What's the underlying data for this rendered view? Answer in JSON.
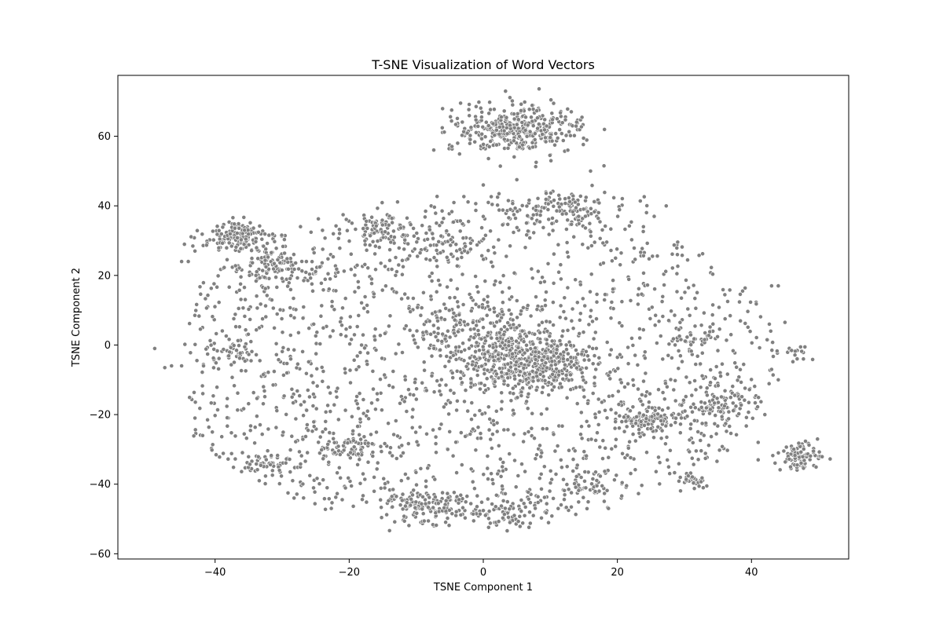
{
  "chart_data": {
    "type": "scatter",
    "title": "T-SNE Visualization of Word Vectors",
    "xlabel": "TSNE Component 1",
    "ylabel": "TSNE Component 2",
    "xlim": [
      -54.5,
      54.5
    ],
    "ylim": [
      -61.5,
      77.5
    ],
    "x_ticks": [
      -40,
      -20,
      0,
      20,
      40
    ],
    "y_ticks": [
      -60,
      -40,
      -20,
      0,
      20,
      40,
      60
    ],
    "x_tick_labels": [
      "−40",
      "−20",
      "0",
      "20",
      "40"
    ],
    "y_tick_labels": [
      "−60",
      "−40",
      "−20",
      "0",
      "20",
      "40",
      "60"
    ],
    "grid": false,
    "legend": "none",
    "marker_color": "#808080",
    "marker_edge_color": "#ffffff",
    "clusters": [
      {
        "cx": 5.0,
        "cy": 62.0,
        "sx": 5.0,
        "sy": 3.5,
        "n": 360
      },
      {
        "cx": 12.0,
        "cy": 39.0,
        "sx": 5.0,
        "sy": 2.5,
        "n": 150
      },
      {
        "cx": 6.0,
        "cy": -5.0,
        "sx": 5.5,
        "sy": 5.0,
        "n": 500
      },
      {
        "cx": -37.0,
        "cy": 31.0,
        "sx": 2.5,
        "sy": 2.0,
        "n": 140
      },
      {
        "cx": -30.0,
        "cy": 22.0,
        "sx": 3.0,
        "sy": 3.0,
        "n": 110
      },
      {
        "cx": 47.0,
        "cy": -32.0,
        "sx": 1.5,
        "sy": 1.8,
        "n": 90
      },
      {
        "cx": 31.0,
        "cy": -39.0,
        "sx": 1.2,
        "sy": 1.2,
        "n": 28
      },
      {
        "cx": 25.0,
        "cy": -21.0,
        "sx": 2.5,
        "sy": 2.0,
        "n": 110
      },
      {
        "cx": 35.0,
        "cy": -17.0,
        "sx": 2.5,
        "sy": 2.5,
        "n": 90
      },
      {
        "cx": -9.0,
        "cy": -46.0,
        "sx": 3.0,
        "sy": 2.5,
        "n": 110
      },
      {
        "cx": 3.0,
        "cy": -47.0,
        "sx": 3.0,
        "sy": 2.5,
        "n": 70
      },
      {
        "cx": -15.0,
        "cy": 33.0,
        "sx": 2.5,
        "sy": 2.5,
        "n": 70
      },
      {
        "cx": -20.0,
        "cy": -29.0,
        "sx": 2.0,
        "sy": 2.0,
        "n": 60
      },
      {
        "cx": -6.0,
        "cy": 28.0,
        "sx": 3.0,
        "sy": 2.5,
        "n": 60
      },
      {
        "cx": -3.0,
        "cy": 4.0,
        "sx": 4.0,
        "sy": 4.0,
        "n": 120
      },
      {
        "cx": -38.0,
        "cy": -2.0,
        "sx": 2.0,
        "sy": 2.0,
        "n": 40
      },
      {
        "cx": -32.0,
        "cy": -34.0,
        "sx": 2.0,
        "sy": 1.5,
        "n": 40
      },
      {
        "cx": 47.0,
        "cy": -2.0,
        "sx": 1.0,
        "sy": 1.0,
        "n": 15
      },
      {
        "cx": 32.0,
        "cy": 2.0,
        "sx": 2.0,
        "sy": 2.0,
        "n": 40
      },
      {
        "cx": 16.0,
        "cy": -40.0,
        "sx": 2.5,
        "sy": 1.5,
        "n": 40
      }
    ],
    "background": {
      "x_range": [
        -44,
        44
      ],
      "y_range": [
        -54,
        44
      ],
      "n": 1700,
      "ellipse": {
        "cx": -2,
        "cy": -5,
        "rx": 46,
        "ry": 48
      }
    },
    "outliers": [
      [
        -49,
        -1
      ],
      [
        -47.5,
        -6.5
      ],
      [
        -46.5,
        -6
      ],
      [
        -45,
        -6
      ],
      [
        -44.5,
        0.2
      ],
      [
        -43,
        -21
      ],
      [
        -44,
        24
      ],
      [
        -43,
        27
      ],
      [
        -45,
        24
      ],
      [
        43,
        17
      ],
      [
        44,
        17
      ],
      [
        45,
        6.5
      ],
      [
        41,
        -33
      ],
      [
        41,
        -28
      ],
      [
        42,
        -20
      ],
      [
        44,
        -10
      ],
      [
        43,
        -7
      ],
      [
        16,
        50
      ],
      [
        18,
        51.5
      ],
      [
        0,
        46
      ],
      [
        5,
        47.5
      ]
    ]
  }
}
